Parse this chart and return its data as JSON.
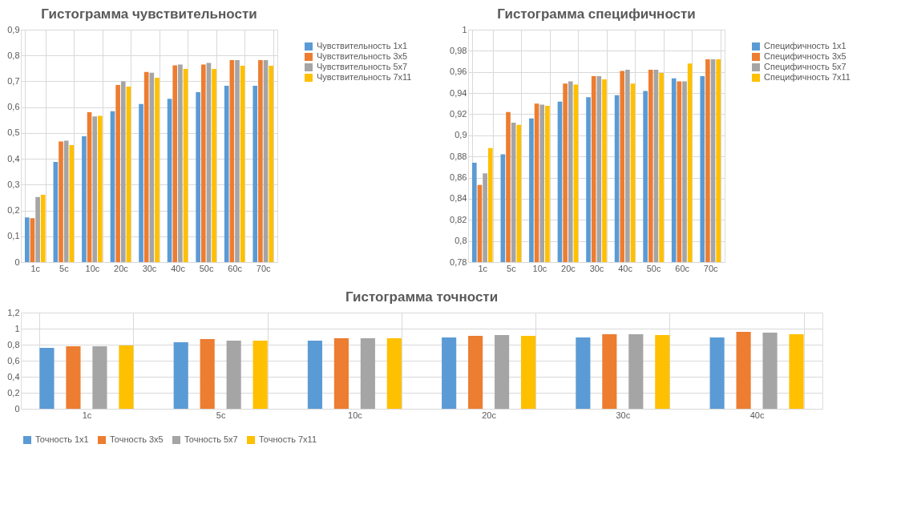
{
  "chart_data": [
    {
      "type": "bar",
      "title": "Гистограмма чувствительности",
      "categories": [
        "1c",
        "5c",
        "10c",
        "20c",
        "30c",
        "40c",
        "50c",
        "60c",
        "70c"
      ],
      "series": [
        {
          "name": "Чувствительность 1x1",
          "color": "#5b9bd5",
          "values": [
            0.173,
            0.388,
            0.487,
            0.584,
            0.612,
            0.632,
            0.658,
            0.683,
            0.683
          ]
        },
        {
          "name": "Чувствительность 3x5",
          "color": "#ed7d31",
          "values": [
            0.17,
            0.467,
            0.58,
            0.686,
            0.736,
            0.762,
            0.765,
            0.782,
            0.782
          ]
        },
        {
          "name": "Чувствительность 5x7",
          "color": "#a5a5a5",
          "values": [
            0.252,
            0.47,
            0.564,
            0.7,
            0.733,
            0.765,
            0.771,
            0.782,
            0.782
          ]
        },
        {
          "name": "Чувствительность 7x11",
          "color": "#ffc000",
          "values": [
            0.261,
            0.453,
            0.566,
            0.68,
            0.714,
            0.748,
            0.748,
            0.76,
            0.76
          ]
        }
      ],
      "ylim": [
        0,
        0.9
      ],
      "yticks": [
        {
          "value": 0,
          "label": "0"
        },
        {
          "value": 0.1,
          "label": "0,1"
        },
        {
          "value": 0.2,
          "label": "0,2"
        },
        {
          "value": 0.3,
          "label": "0,3"
        },
        {
          "value": 0.4,
          "label": "0,4"
        },
        {
          "value": 0.5,
          "label": "0,5"
        },
        {
          "value": 0.6,
          "label": "0,6"
        },
        {
          "value": 0.7,
          "label": "0,7"
        },
        {
          "value": 0.8,
          "label": "0,8"
        },
        {
          "value": 0.9,
          "label": "0,9"
        }
      ],
      "grid": true,
      "legend": "right"
    },
    {
      "type": "bar",
      "title": "Гистограмма специфичности",
      "categories": [
        "1c",
        "5c",
        "10c",
        "20c",
        "30c",
        "40c",
        "50c",
        "60c",
        "70c"
      ],
      "series": [
        {
          "name": "Специфичность 1x1",
          "color": "#5b9bd5",
          "values": [
            0.874,
            0.882,
            0.916,
            0.932,
            0.936,
            0.938,
            0.942,
            0.954,
            0.956
          ]
        },
        {
          "name": "Специфичность 3x5",
          "color": "#ed7d31",
          "values": [
            0.853,
            0.922,
            0.93,
            0.949,
            0.956,
            0.961,
            0.962,
            0.951,
            0.972
          ]
        },
        {
          "name": "Специфичность 5x7",
          "color": "#a5a5a5",
          "values": [
            0.864,
            0.912,
            0.929,
            0.951,
            0.956,
            0.962,
            0.962,
            0.951,
            0.972
          ]
        },
        {
          "name": "Специфичность 7x11",
          "color": "#ffc000",
          "values": [
            0.888,
            0.91,
            0.928,
            0.948,
            0.953,
            0.949,
            0.959,
            0.968,
            0.972
          ]
        }
      ],
      "ylim": [
        0.78,
        1
      ],
      "yticks": [
        {
          "value": 0.78,
          "label": "0,78"
        },
        {
          "value": 0.8,
          "label": "0,8"
        },
        {
          "value": 0.82,
          "label": "0,82"
        },
        {
          "value": 0.84,
          "label": "0,84"
        },
        {
          "value": 0.86,
          "label": "0,86"
        },
        {
          "value": 0.88,
          "label": "0,88"
        },
        {
          "value": 0.9,
          "label": "0,9"
        },
        {
          "value": 0.92,
          "label": "0,92"
        },
        {
          "value": 0.94,
          "label": "0,94"
        },
        {
          "value": 0.96,
          "label": "0,96"
        },
        {
          "value": 0.98,
          "label": "0,98"
        },
        {
          "value": 1,
          "label": "1"
        }
      ],
      "grid": true,
      "legend": "right"
    },
    {
      "type": "bar",
      "title": "Гистограмма точности",
      "categories": [
        "1c",
        "5c",
        "10c",
        "20c",
        "30c",
        "40c"
      ],
      "series": [
        {
          "name": "Точность 1x1",
          "color": "#5b9bd5",
          "values": [
            0.76,
            0.83,
            0.85,
            0.89,
            0.89,
            0.89
          ]
        },
        {
          "name": "Точность 3x5",
          "color": "#ed7d31",
          "values": [
            0.78,
            0.87,
            0.88,
            0.91,
            0.93,
            0.96
          ]
        },
        {
          "name": "Точность 5x7",
          "color": "#a5a5a5",
          "values": [
            0.78,
            0.85,
            0.88,
            0.92,
            0.93,
            0.95
          ]
        },
        {
          "name": "Точность 7x11",
          "color": "#ffc000",
          "values": [
            0.79,
            0.85,
            0.88,
            0.91,
            0.92,
            0.93
          ]
        }
      ],
      "ylim": [
        0,
        1.2
      ],
      "yticks": [
        {
          "value": 0,
          "label": "0"
        },
        {
          "value": 0.2,
          "label": "0,2"
        },
        {
          "value": 0.4,
          "label": "0,4"
        },
        {
          "value": 0.6,
          "label": "0,6"
        },
        {
          "value": 0.8,
          "label": "0,8"
        },
        {
          "value": 1,
          "label": "1"
        },
        {
          "value": 1.2,
          "label": "1,2"
        }
      ],
      "grid": true,
      "legend": "bottom"
    }
  ]
}
